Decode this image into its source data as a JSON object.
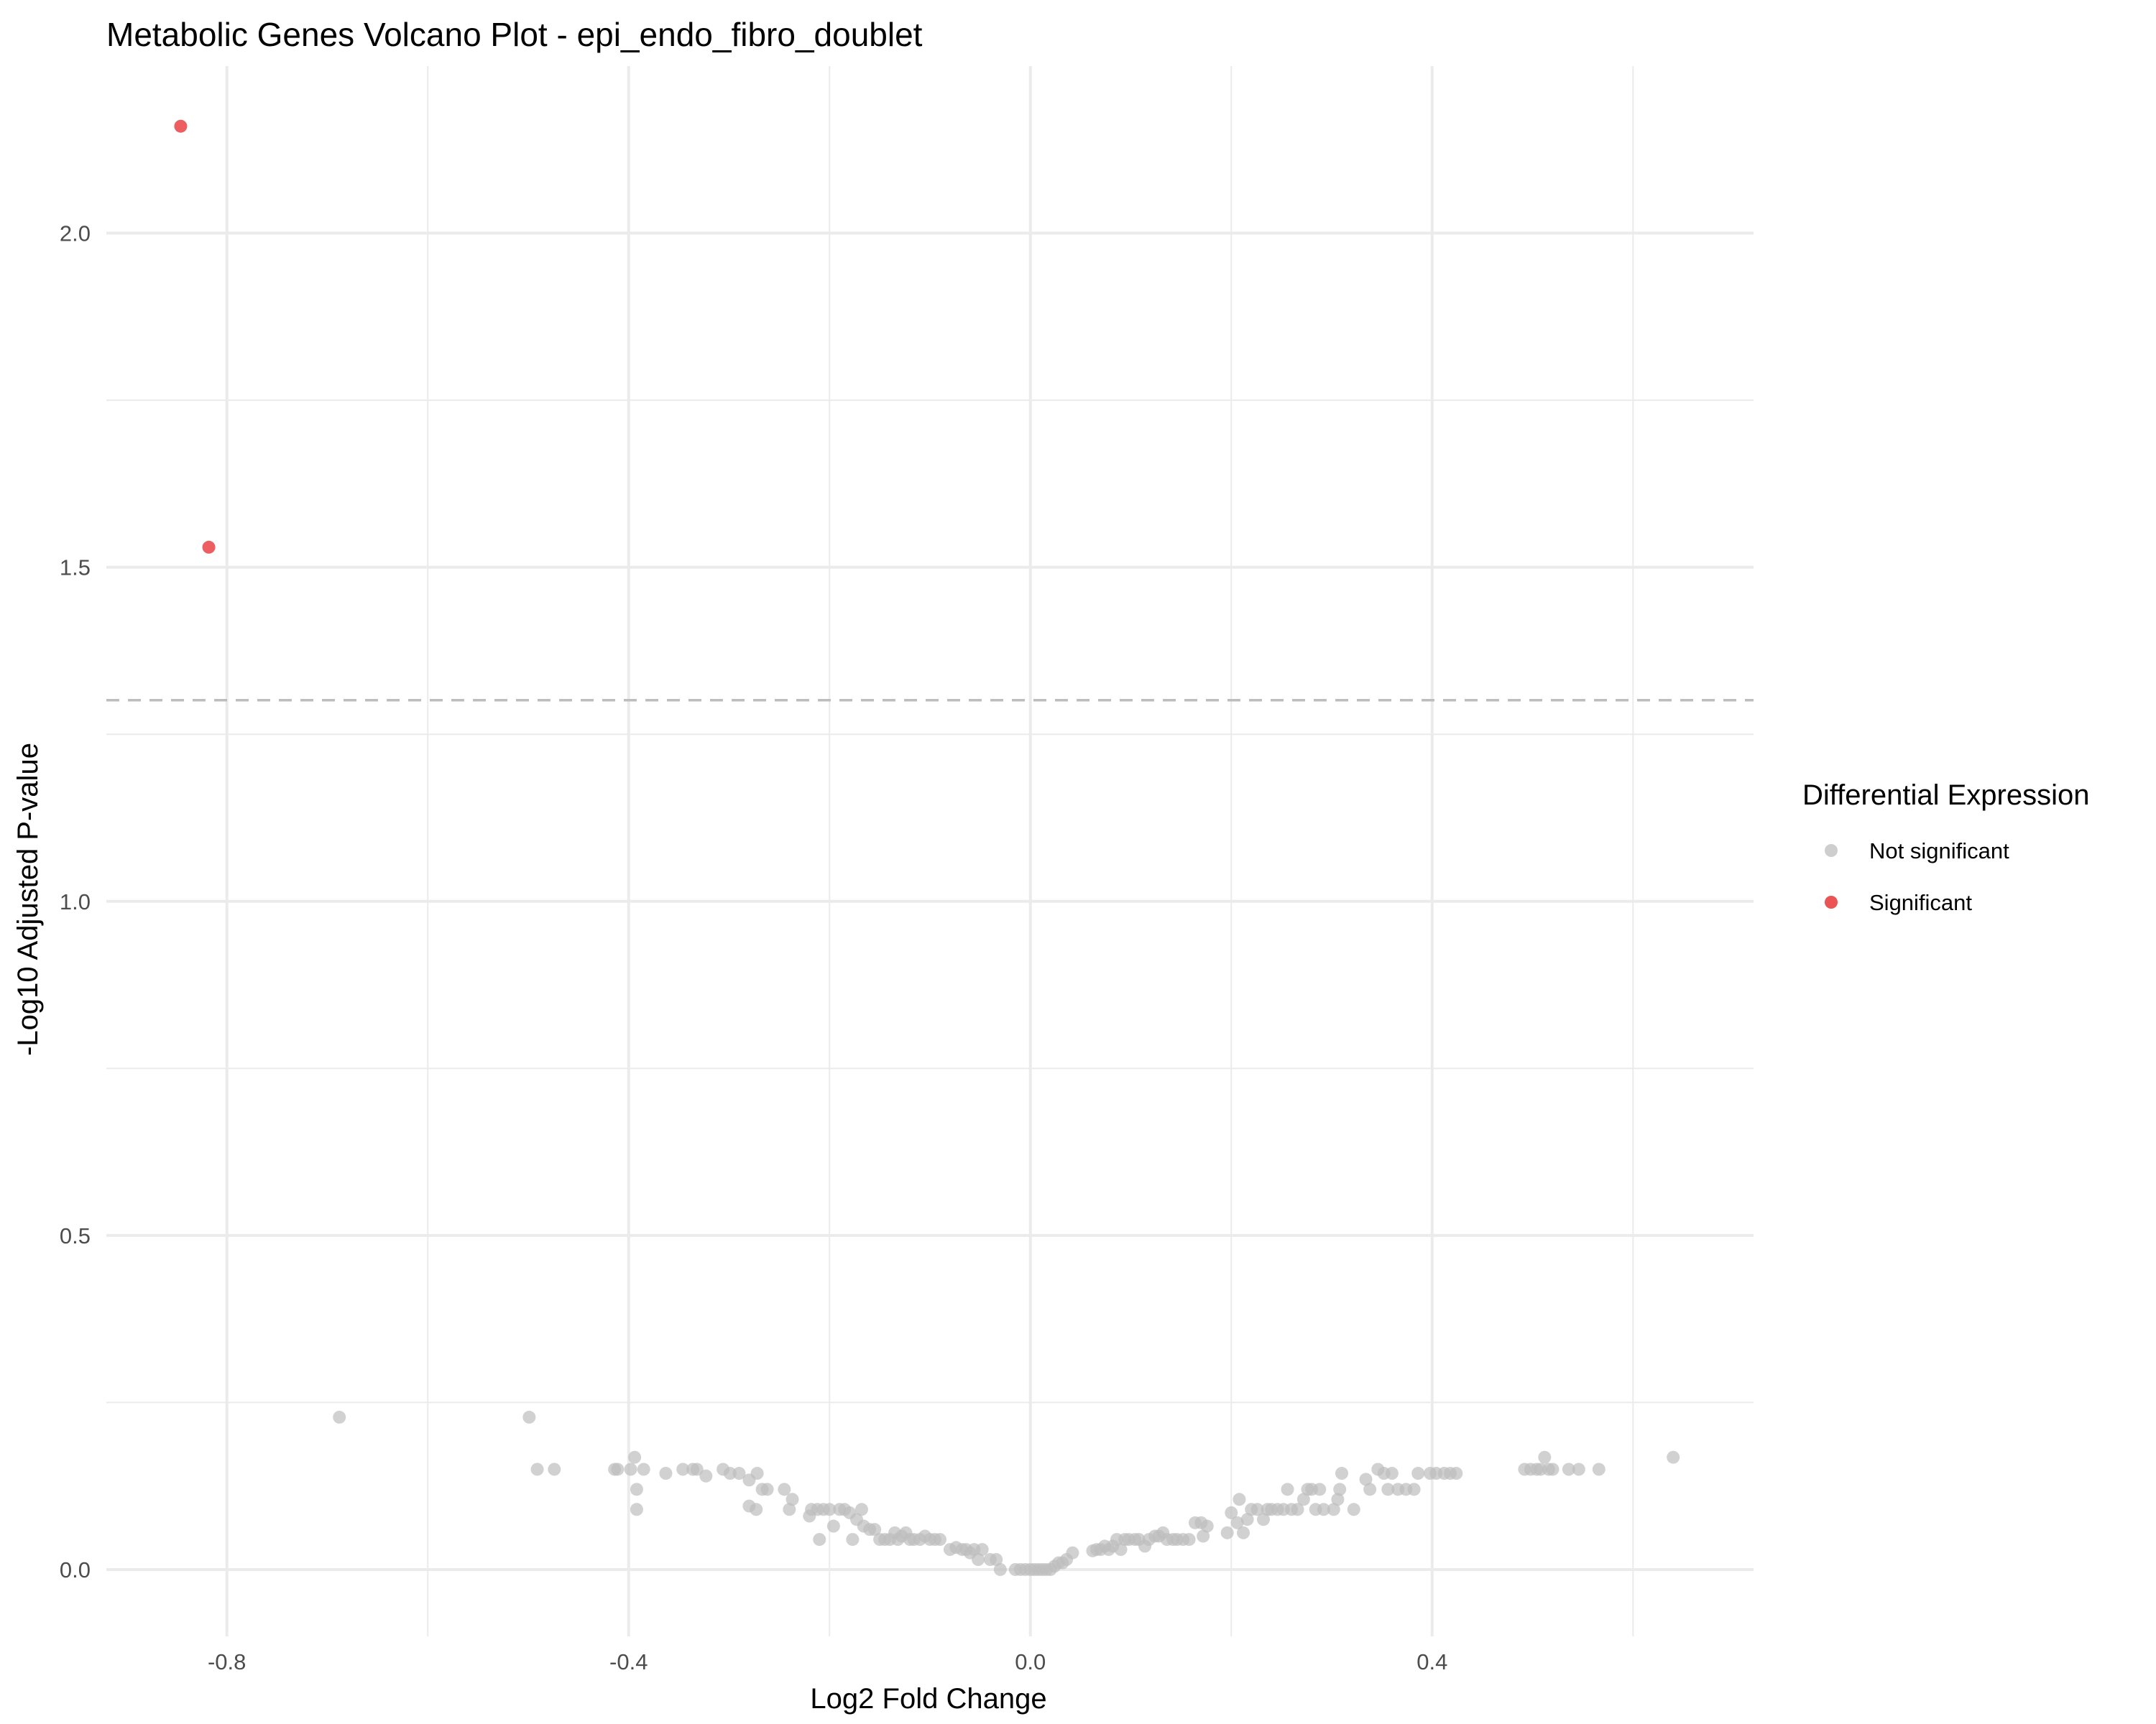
{
  "chart_data": {
    "type": "scatter",
    "title": "Metabolic Genes Volcano Plot - epi_endo_fibro_doublet",
    "xlabel": "Log2 Fold Change",
    "ylabel": "-Log10 Adjusted P-value",
    "xlim": [
      -0.92,
      0.72
    ],
    "ylim": [
      -0.1,
      2.25
    ],
    "x_ticks": [
      -0.8,
      -0.4,
      0.0,
      0.4
    ],
    "x_tick_labels": [
      "-0.8",
      "-0.4",
      "0.0",
      "0.4"
    ],
    "y_ticks": [
      0.0,
      0.5,
      1.0,
      1.5,
      2.0
    ],
    "y_tick_labels": [
      "0.0",
      "0.5",
      "1.0",
      "1.5",
      "2.0"
    ],
    "threshold_y": 1.301,
    "grid": true,
    "legend": {
      "title": "Differential Expression",
      "position": "right",
      "entries": [
        {
          "label": "Not significant",
          "color": "#bdbdbd"
        },
        {
          "label": "Significant",
          "color": "#e41a1c"
        }
      ]
    },
    "series": [
      {
        "name": "Significant",
        "color": "#e41a1c",
        "points": [
          [
            -0.846,
            2.16
          ],
          [
            -0.818,
            1.53
          ]
        ]
      },
      {
        "name": "Not significant",
        "color": "#bdbdbd",
        "points": [
          [
            -0.688,
            0.228
          ],
          [
            -0.499,
            0.228
          ],
          [
            -0.491,
            0.15
          ],
          [
            -0.474,
            0.15
          ],
          [
            -0.414,
            0.15
          ],
          [
            -0.411,
            0.15
          ],
          [
            -0.398,
            0.15
          ],
          [
            -0.394,
            0.168
          ],
          [
            -0.392,
            0.12
          ],
          [
            -0.392,
            0.09
          ],
          [
            -0.385,
            0.15
          ],
          [
            -0.363,
            0.144
          ],
          [
            -0.346,
            0.15
          ],
          [
            -0.336,
            0.15
          ],
          [
            -0.332,
            0.15
          ],
          [
            -0.323,
            0.14
          ],
          [
            -0.306,
            0.15
          ],
          [
            -0.299,
            0.144
          ],
          [
            -0.29,
            0.144
          ],
          [
            -0.28,
            0.095
          ],
          [
            -0.28,
            0.134
          ],
          [
            -0.273,
            0.09
          ],
          [
            -0.272,
            0.144
          ],
          [
            -0.267,
            0.12
          ],
          [
            -0.262,
            0.12
          ],
          [
            -0.245,
            0.12
          ],
          [
            -0.24,
            0.09
          ],
          [
            -0.237,
            0.105
          ],
          [
            -0.22,
            0.08
          ],
          [
            -0.218,
            0.09
          ],
          [
            -0.212,
            0.09
          ],
          [
            -0.21,
            0.045
          ],
          [
            -0.206,
            0.09
          ],
          [
            -0.2,
            0.09
          ],
          [
            -0.196,
            0.065
          ],
          [
            -0.19,
            0.09
          ],
          [
            -0.185,
            0.09
          ],
          [
            -0.18,
            0.085
          ],
          [
            -0.177,
            0.045
          ],
          [
            -0.173,
            0.075
          ],
          [
            -0.168,
            0.09
          ],
          [
            -0.166,
            0.065
          ],
          [
            -0.16,
            0.06
          ],
          [
            -0.155,
            0.06
          ],
          [
            -0.15,
            0.045
          ],
          [
            -0.145,
            0.045
          ],
          [
            -0.14,
            0.045
          ],
          [
            -0.135,
            0.055
          ],
          [
            -0.132,
            0.045
          ],
          [
            -0.128,
            0.05
          ],
          [
            -0.124,
            0.055
          ],
          [
            -0.12,
            0.045
          ],
          [
            -0.116,
            0.045
          ],
          [
            -0.11,
            0.045
          ],
          [
            -0.105,
            0.05
          ],
          [
            -0.1,
            0.045
          ],
          [
            -0.095,
            0.045
          ],
          [
            -0.09,
            0.045
          ],
          [
            -0.08,
            0.03
          ],
          [
            -0.074,
            0.033
          ],
          [
            -0.068,
            0.03
          ],
          [
            -0.064,
            0.03
          ],
          [
            -0.06,
            0.025
          ],
          [
            -0.056,
            0.03
          ],
          [
            -0.052,
            0.015
          ],
          [
            -0.048,
            0.03
          ],
          [
            -0.04,
            0.015
          ],
          [
            -0.034,
            0.015
          ],
          [
            -0.03,
            0.0
          ],
          [
            -0.015,
            0.0
          ],
          [
            -0.01,
            0.0
          ],
          [
            -0.005,
            0.0
          ],
          [
            0.0,
            0.0
          ],
          [
            0.004,
            0.0
          ],
          [
            0.008,
            0.0
          ],
          [
            0.012,
            0.0
          ],
          [
            0.016,
            0.0
          ],
          [
            0.02,
            0.0
          ],
          [
            0.024,
            0.005
          ],
          [
            0.028,
            0.01
          ],
          [
            0.032,
            0.01
          ],
          [
            0.036,
            0.015
          ],
          [
            0.042,
            0.025
          ],
          [
            0.062,
            0.028
          ],
          [
            0.066,
            0.03
          ],
          [
            0.07,
            0.03
          ],
          [
            0.074,
            0.035
          ],
          [
            0.078,
            0.03
          ],
          [
            0.082,
            0.035
          ],
          [
            0.086,
            0.045
          ],
          [
            0.09,
            0.03
          ],
          [
            0.094,
            0.045
          ],
          [
            0.098,
            0.045
          ],
          [
            0.104,
            0.045
          ],
          [
            0.108,
            0.045
          ],
          [
            0.114,
            0.035
          ],
          [
            0.118,
            0.045
          ],
          [
            0.124,
            0.05
          ],
          [
            0.128,
            0.05
          ],
          [
            0.132,
            0.055
          ],
          [
            0.136,
            0.045
          ],
          [
            0.142,
            0.045
          ],
          [
            0.146,
            0.045
          ],
          [
            0.152,
            0.045
          ],
          [
            0.158,
            0.045
          ],
          [
            0.164,
            0.07
          ],
          [
            0.17,
            0.07
          ],
          [
            0.172,
            0.05
          ],
          [
            0.176,
            0.065
          ],
          [
            0.196,
            0.055
          ],
          [
            0.2,
            0.085
          ],
          [
            0.206,
            0.07
          ],
          [
            0.208,
            0.105
          ],
          [
            0.212,
            0.055
          ],
          [
            0.216,
            0.075
          ],
          [
            0.22,
            0.09
          ],
          [
            0.226,
            0.09
          ],
          [
            0.232,
            0.075
          ],
          [
            0.236,
            0.09
          ],
          [
            0.24,
            0.09
          ],
          [
            0.246,
            0.09
          ],
          [
            0.252,
            0.09
          ],
          [
            0.256,
            0.12
          ],
          [
            0.26,
            0.09
          ],
          [
            0.266,
            0.09
          ],
          [
            0.272,
            0.105
          ],
          [
            0.276,
            0.12
          ],
          [
            0.28,
            0.12
          ],
          [
            0.284,
            0.09
          ],
          [
            0.288,
            0.12
          ],
          [
            0.292,
            0.09
          ],
          [
            0.302,
            0.09
          ],
          [
            0.306,
            0.105
          ],
          [
            0.308,
            0.12
          ],
          [
            0.31,
            0.144
          ],
          [
            0.322,
            0.09
          ],
          [
            0.334,
            0.135
          ],
          [
            0.338,
            0.12
          ],
          [
            0.346,
            0.15
          ],
          [
            0.352,
            0.144
          ],
          [
            0.356,
            0.12
          ],
          [
            0.36,
            0.144
          ],
          [
            0.366,
            0.12
          ],
          [
            0.374,
            0.12
          ],
          [
            0.382,
            0.12
          ],
          [
            0.386,
            0.144
          ],
          [
            0.398,
            0.144
          ],
          [
            0.404,
            0.144
          ],
          [
            0.412,
            0.144
          ],
          [
            0.418,
            0.144
          ],
          [
            0.424,
            0.144
          ],
          [
            0.492,
            0.15
          ],
          [
            0.498,
            0.15
          ],
          [
            0.504,
            0.15
          ],
          [
            0.508,
            0.15
          ],
          [
            0.512,
            0.168
          ],
          [
            0.516,
            0.15
          ],
          [
            0.52,
            0.15
          ],
          [
            0.536,
            0.15
          ],
          [
            0.546,
            0.15
          ],
          [
            0.566,
            0.15
          ],
          [
            0.64,
            0.168
          ]
        ]
      }
    ]
  }
}
